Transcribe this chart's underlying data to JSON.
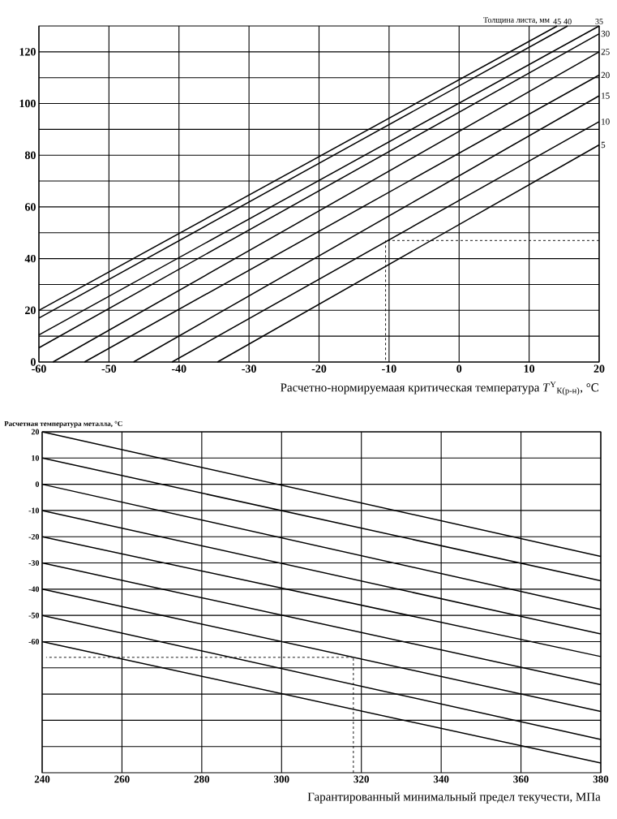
{
  "chart_data": [
    {
      "type": "line",
      "legend_title": "Толщина листа, мм",
      "xlabel": "Расчетно-нормируемаая критическая температура *T*$^{Y}$$_{К(р-н)}$, °C",
      "xlim": [
        -60,
        20
      ],
      "ylim": [
        0,
        130
      ],
      "xticks": [
        -60,
        -50,
        -40,
        -30,
        -20,
        -10,
        0,
        10,
        20
      ],
      "yticks": [
        0,
        {
          "value": 10,
          "label": null
        },
        20,
        {
          "value": 30,
          "label": null
        },
        40,
        {
          "value": 50,
          "label": null
        },
        60,
        {
          "value": 70,
          "label": null
        },
        80,
        {
          "value": 90,
          "label": null
        },
        100,
        {
          "value": 110,
          "label": null
        },
        120
      ],
      "grid": true,
      "series": [
        {
          "name": "45",
          "color": "#000000",
          "x": [
            -60,
            14
          ],
          "values": [
            20,
            130
          ]
        },
        {
          "name": "40",
          "color": "#000000",
          "x": [
            -60,
            15.5
          ],
          "values": [
            17,
            130
          ]
        },
        {
          "name": "35",
          "color": "#000000",
          "x": [
            -60,
            20
          ],
          "values": [
            10.5,
            130
          ]
        },
        {
          "name": "30",
          "color": "#000000",
          "x": [
            -60,
            20
          ],
          "values": [
            5.5,
            127
          ]
        },
        {
          "name": "25",
          "color": "#000000",
          "x": [
            -58,
            20
          ],
          "values": [
            0,
            120
          ]
        },
        {
          "name": "20",
          "color": "#000000",
          "x": [
            -53.5,
            20
          ],
          "values": [
            0,
            111
          ]
        },
        {
          "name": "15",
          "color": "#000000",
          "x": [
            -46.5,
            20
          ],
          "values": [
            0,
            103
          ]
        },
        {
          "name": "10",
          "color": "#000000",
          "x": [
            -41,
            20
          ],
          "values": [
            0,
            93
          ]
        },
        {
          "name": "5",
          "color": "#000000",
          "x": [
            -34.5,
            20
          ],
          "values": [
            0,
            84
          ]
        },
        {
          "color": "#000000",
          "line_style": "dashed",
          "x": [
            20,
            -10.5
          ],
          "values": [
            47,
            47
          ]
        },
        {
          "color": "#000000",
          "line_style": "dashed",
          "x": [
            -10.5,
            -10.5
          ],
          "values": [
            47,
            0
          ]
        }
      ]
    },
    {
      "type": "line",
      "ylabel": "Расчетная температура металла, °C",
      "xlabel": "Гарантированный минимальный предел текучести, МПа",
      "xlim": [
        240,
        380
      ],
      "ylim": [
        -110,
        20
      ],
      "xticks": [
        240,
        260,
        280,
        300,
        320,
        340,
        360,
        380
      ],
      "yticks": [
        20,
        10,
        0,
        -10,
        -20,
        -30,
        -40,
        -50,
        -60,
        {
          "value": -70,
          "label": null
        },
        {
          "value": -80,
          "label": null
        },
        {
          "value": -90,
          "label": null
        },
        {
          "value": -100,
          "label": null
        }
      ],
      "grid": true,
      "series": [
        {
          "color": "#000000",
          "x": [
            240,
            380
          ],
          "values": [
            20,
            -27.5
          ]
        },
        {
          "color": "#000000",
          "x": [
            240,
            380
          ],
          "values": [
            10,
            -36.8
          ]
        },
        {
          "color": "#000000",
          "x": [
            240,
            380
          ],
          "values": [
            0,
            -47.7
          ]
        },
        {
          "color": "#000000",
          "x": [
            240,
            380
          ],
          "values": [
            -10,
            -57.1
          ]
        },
        {
          "color": "#000000",
          "x": [
            240,
            380
          ],
          "values": [
            -20,
            -65.7
          ]
        },
        {
          "color": "#000000",
          "x": [
            240,
            380
          ],
          "values": [
            -30,
            -76.4
          ]
        },
        {
          "color": "#000000",
          "x": [
            240,
            380
          ],
          "values": [
            -40,
            -86.6
          ]
        },
        {
          "color": "#000000",
          "x": [
            240,
            380
          ],
          "values": [
            -50,
            -97.3
          ]
        },
        {
          "color": "#000000",
          "x": [
            240,
            380
          ],
          "values": [
            -60,
            -106.3
          ]
        },
        {
          "color": "#000000",
          "line_style": "dashed",
          "x": [
            318,
            318
          ],
          "values": [
            -110,
            -66
          ]
        },
        {
          "color": "#000000",
          "line_style": "dashed",
          "x": [
            318,
            241
          ],
          "values": [
            -66,
            -66
          ]
        }
      ]
    }
  ]
}
